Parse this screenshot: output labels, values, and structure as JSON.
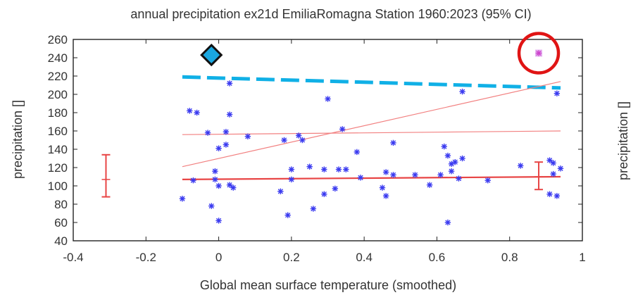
{
  "chart_data": {
    "type": "scatter",
    "title": "annual precipitation ex21d EmiliaRomagna Station 1960:2023 (95% CI)",
    "xlabel": "Global mean surface temperature (smoothed)",
    "ylabel": "precipitation []",
    "ylabel_right": "precipitation []",
    "xlim": [
      -0.4,
      1
    ],
    "ylim": [
      40,
      260
    ],
    "x_ticks": [
      "-0.4",
      "-0.2",
      "0",
      "0.2",
      "0.4",
      "0.6",
      "0.8",
      "1"
    ],
    "y_ticks": [
      "40",
      "60",
      "80",
      "100",
      "120",
      "140",
      "160",
      "180",
      "200",
      "220",
      "240",
      "260"
    ],
    "x_tick_values": [
      -0.4,
      -0.2,
      0,
      0.2,
      0.4,
      0.6,
      0.8,
      1.0
    ],
    "y_tick_values": [
      40,
      60,
      80,
      100,
      120,
      140,
      160,
      180,
      200,
      220,
      240,
      260
    ],
    "grid": false,
    "points": [
      {
        "x": -0.1,
        "y": 86
      },
      {
        "x": -0.08,
        "y": 182
      },
      {
        "x": -0.07,
        "y": 106
      },
      {
        "x": -0.06,
        "y": 180
      },
      {
        "x": -0.03,
        "y": 158
      },
      {
        "x": -0.02,
        "y": 78
      },
      {
        "x": -0.01,
        "y": 107
      },
      {
        "x": -0.01,
        "y": 116
      },
      {
        "x": 0.0,
        "y": 62
      },
      {
        "x": 0.0,
        "y": 141
      },
      {
        "x": 0.0,
        "y": 100
      },
      {
        "x": 0.02,
        "y": 145
      },
      {
        "x": 0.02,
        "y": 159
      },
      {
        "x": 0.03,
        "y": 178
      },
      {
        "x": 0.03,
        "y": 212
      },
      {
        "x": 0.03,
        "y": 101
      },
      {
        "x": 0.04,
        "y": 98
      },
      {
        "x": 0.08,
        "y": 154
      },
      {
        "x": 0.17,
        "y": 94
      },
      {
        "x": 0.18,
        "y": 150
      },
      {
        "x": 0.19,
        "y": 68
      },
      {
        "x": 0.2,
        "y": 107
      },
      {
        "x": 0.2,
        "y": 118
      },
      {
        "x": 0.22,
        "y": 155
      },
      {
        "x": 0.23,
        "y": 150
      },
      {
        "x": 0.25,
        "y": 121
      },
      {
        "x": 0.26,
        "y": 75
      },
      {
        "x": 0.29,
        "y": 91
      },
      {
        "x": 0.29,
        "y": 118
      },
      {
        "x": 0.3,
        "y": 195
      },
      {
        "x": 0.32,
        "y": 97
      },
      {
        "x": 0.33,
        "y": 118
      },
      {
        "x": 0.34,
        "y": 162
      },
      {
        "x": 0.35,
        "y": 118
      },
      {
        "x": 0.38,
        "y": 137
      },
      {
        "x": 0.39,
        "y": 109
      },
      {
        "x": 0.45,
        "y": 98
      },
      {
        "x": 0.46,
        "y": 89
      },
      {
        "x": 0.46,
        "y": 115
      },
      {
        "x": 0.48,
        "y": 147
      },
      {
        "x": 0.48,
        "y": 112
      },
      {
        "x": 0.54,
        "y": 112
      },
      {
        "x": 0.58,
        "y": 101
      },
      {
        "x": 0.61,
        "y": 112
      },
      {
        "x": 0.62,
        "y": 143
      },
      {
        "x": 0.63,
        "y": 133
      },
      {
        "x": 0.63,
        "y": 60
      },
      {
        "x": 0.64,
        "y": 124
      },
      {
        "x": 0.64,
        "y": 116
      },
      {
        "x": 0.65,
        "y": 126
      },
      {
        "x": 0.66,
        "y": 108
      },
      {
        "x": 0.67,
        "y": 130
      },
      {
        "x": 0.67,
        "y": 203
      },
      {
        "x": 0.74,
        "y": 106
      },
      {
        "x": 0.83,
        "y": 122
      },
      {
        "x": 0.91,
        "y": 128
      },
      {
        "x": 0.91,
        "y": 91
      },
      {
        "x": 0.92,
        "y": 113
      },
      {
        "x": 0.92,
        "y": 125
      },
      {
        "x": 0.93,
        "y": 89
      },
      {
        "x": 0.93,
        "y": 201
      },
      {
        "x": 0.94,
        "y": 119
      }
    ],
    "highlight_point": {
      "x": 0.88,
      "y": 245,
      "color": "#cc44cc"
    },
    "diamond_marker": {
      "x": -0.02,
      "y": 243,
      "color": "#1aa7e0"
    },
    "fit_lines": [
      {
        "style": "dashed",
        "color": "#10b0e6",
        "x": [
          -0.1,
          0.94
        ],
        "y": [
          219,
          207
        ]
      },
      {
        "style": "solid-thin",
        "color": "#f28080",
        "x": [
          -0.1,
          0.94
        ],
        "y": [
          121,
          214
        ]
      },
      {
        "style": "solid-thin",
        "color": "#f28080",
        "x": [
          -0.1,
          0.94
        ],
        "y": [
          156,
          160
        ]
      },
      {
        "style": "solid",
        "color": "#e84545",
        "x": [
          -0.1,
          0.94
        ],
        "y": [
          107,
          110
        ]
      }
    ],
    "error_bars": [
      {
        "x": -0.31,
        "y": 107,
        "low": 88,
        "high": 134
      },
      {
        "x": 0.88,
        "y": 110,
        "low": 96,
        "high": 126
      }
    ],
    "colors": {
      "points": "#3a3af0",
      "error": "#e84545",
      "circle": "#e01414"
    }
  }
}
